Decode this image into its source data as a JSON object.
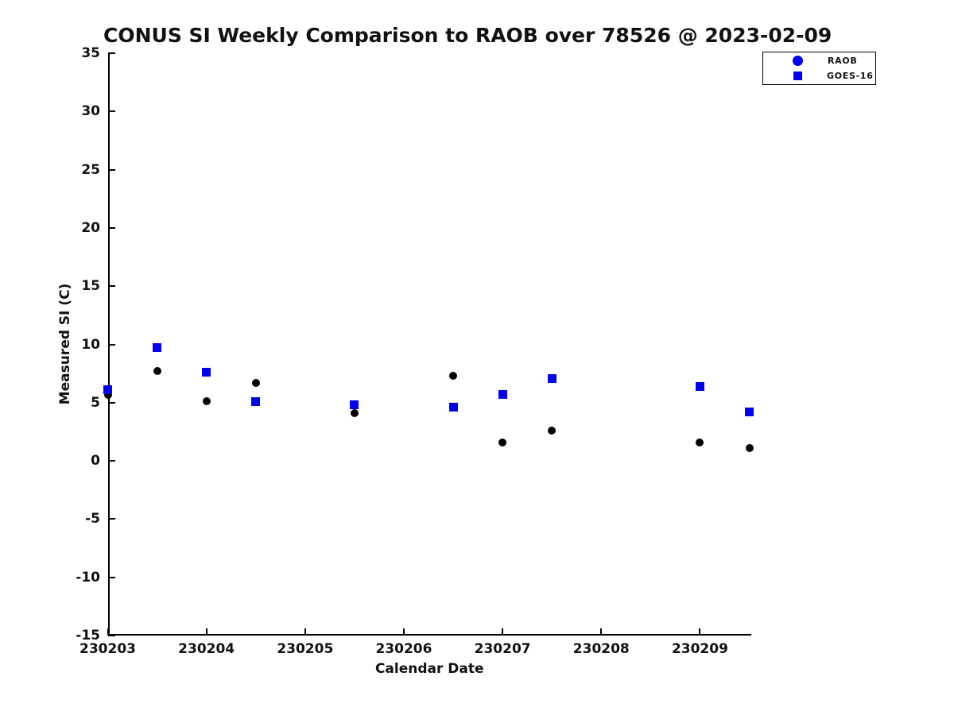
{
  "page": {
    "background": "#ffffff",
    "axis_color": "#000000",
    "text_color": "#111111",
    "accent_blue": "#0000ee"
  },
  "chart_data": {
    "type": "scatter",
    "title": "CONUS SI Weekly Comparison to RAOB over 78526 @ 2023-02-09",
    "xlabel": "Calendar Date",
    "ylabel": "Measured SI (C)",
    "xlim": [
      230203,
      230209.52
    ],
    "ylim": [
      -15,
      35
    ],
    "x_ticks": [
      230203,
      230204,
      230205,
      230206,
      230207,
      230208,
      230209
    ],
    "x_tick_labels": [
      "230203",
      "230204",
      "230205",
      "230206",
      "230207",
      "230208",
      "230209"
    ],
    "y_ticks": [
      35,
      30,
      25,
      20,
      15,
      10,
      5,
      0,
      -5,
      -10,
      -15
    ],
    "y_tick_labels": [
      "35",
      "30",
      "25",
      "20",
      "15",
      "10",
      "5",
      "0",
      "-5",
      "-10",
      "-15"
    ],
    "grid": false,
    "legend": {
      "position": "top-right",
      "entries": [
        {
          "label": "RAOB",
          "marker": "circle",
          "marker_color": "#0000ee"
        },
        {
          "label": "GOES-16",
          "marker": "square",
          "marker_color": "#0000ee"
        }
      ]
    },
    "series": [
      {
        "name": "RAOB",
        "marker": "circle",
        "marker_size": 10,
        "color": "#000000",
        "x": [
          230203.0,
          230203.5,
          230204.0,
          230204.5,
          230205.5,
          230206.5,
          230207.0,
          230207.5,
          230209.0,
          230209.5
        ],
        "y": [
          5.7,
          7.7,
          5.1,
          6.7,
          4.1,
          7.3,
          1.6,
          2.6,
          1.6,
          1.1
        ]
      },
      {
        "name": "GOES-16",
        "marker": "square",
        "marker_size": 11,
        "color": "#0000ee",
        "x": [
          230203.0,
          230203.5,
          230204.0,
          230204.5,
          230205.5,
          230206.5,
          230207.0,
          230207.5,
          230209.0,
          230209.5
        ],
        "y": [
          6.1,
          9.7,
          7.6,
          5.1,
          4.8,
          4.6,
          5.7,
          7.1,
          6.4,
          4.2
        ]
      }
    ]
  }
}
